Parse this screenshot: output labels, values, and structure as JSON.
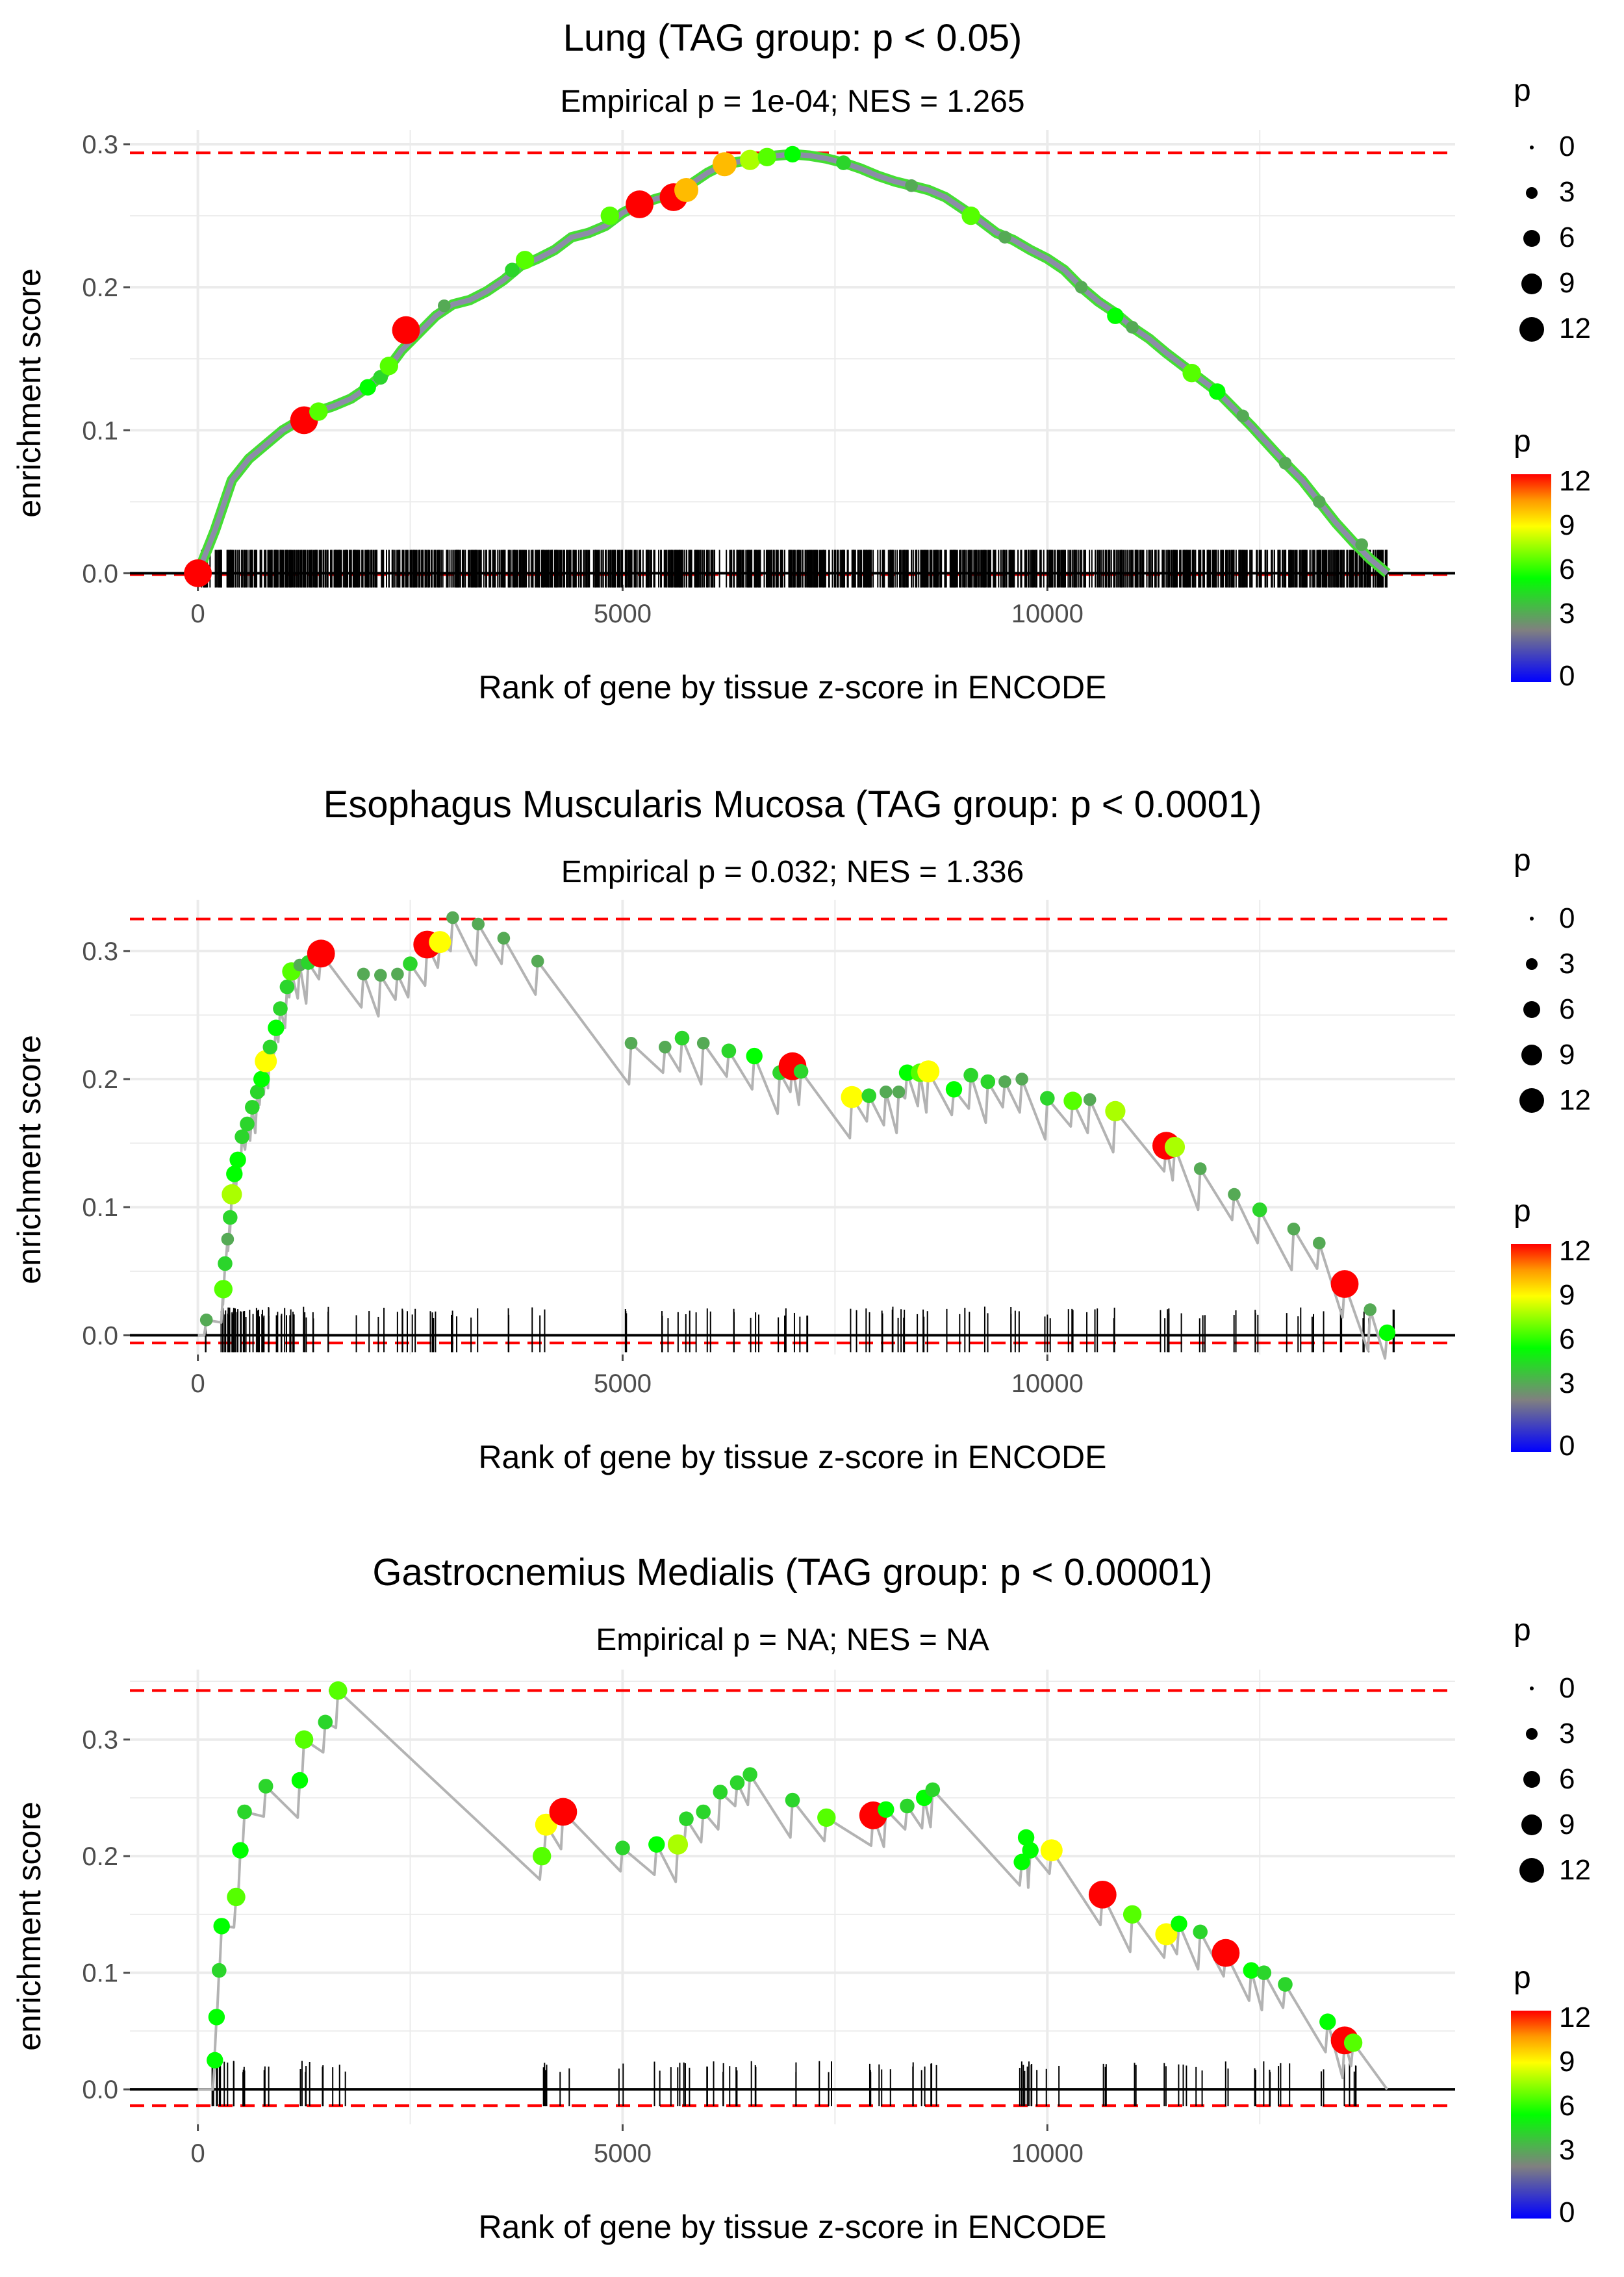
{
  "palette": {
    "grid": "#ebebeb",
    "curve": "#b3b3b3",
    "threshold": "#ff0000",
    "zero_line": "#000000",
    "rug": "#000000",
    "tick_text": "#4d4d4d",
    "text": "#000000",
    "gradient": [
      "#0000ff",
      "#808080",
      "#00ff00",
      "#ffff00",
      "#ff9900",
      "#ff0000"
    ]
  },
  "chart_data": [
    {
      "type": "line",
      "title": "Lung (TAG group: p < 0.05)",
      "subtitle": "Empirical p = 1e-04; NES = 1.265",
      "xlabel": "Rank of gene by tissue z-score in ENCODE",
      "ylabel": "enrichment score",
      "xlim": [
        -800,
        14800
      ],
      "ylim": [
        -0.008,
        0.31
      ],
      "x_ticks": [
        0,
        5000,
        10000
      ],
      "x_tick_labels": [
        "0",
        "5000",
        "10000"
      ],
      "y_ticks": [
        0,
        0.1,
        0.2,
        0.3
      ],
      "y_tick_labels": [
        "0.0",
        "0.1",
        "0.2",
        "0.3"
      ],
      "dense": true,
      "threshold_max": 0.294,
      "threshold_min": -0.001,
      "max_rank": 14000,
      "curve": [
        [
          0,
          0
        ],
        [
          200,
          0.03
        ],
        [
          400,
          0.065
        ],
        [
          600,
          0.08
        ],
        [
          800,
          0.09
        ],
        [
          1000,
          0.1
        ],
        [
          1200,
          0.107
        ],
        [
          1400,
          0.113
        ],
        [
          1600,
          0.117
        ],
        [
          1800,
          0.122
        ],
        [
          2000,
          0.13
        ],
        [
          2200,
          0.14
        ],
        [
          2400,
          0.156
        ],
        [
          2600,
          0.168
        ],
        [
          2800,
          0.18
        ],
        [
          3000,
          0.188
        ],
        [
          3200,
          0.191
        ],
        [
          3400,
          0.197
        ],
        [
          3600,
          0.205
        ],
        [
          3800,
          0.215
        ],
        [
          4000,
          0.22
        ],
        [
          4200,
          0.226
        ],
        [
          4400,
          0.235
        ],
        [
          4600,
          0.238
        ],
        [
          4800,
          0.243
        ],
        [
          5000,
          0.252
        ],
        [
          5200,
          0.258
        ],
        [
          5400,
          0.262
        ],
        [
          5600,
          0.265
        ],
        [
          5800,
          0.272
        ],
        [
          6000,
          0.28
        ],
        [
          6200,
          0.286
        ],
        [
          6400,
          0.288
        ],
        [
          6600,
          0.29
        ],
        [
          6800,
          0.292
        ],
        [
          7000,
          0.293
        ],
        [
          7200,
          0.292
        ],
        [
          7400,
          0.29
        ],
        [
          7600,
          0.287
        ],
        [
          7800,
          0.283
        ],
        [
          8000,
          0.278
        ],
        [
          8200,
          0.274
        ],
        [
          8400,
          0.271
        ],
        [
          8600,
          0.268
        ],
        [
          8800,
          0.263
        ],
        [
          9000,
          0.255
        ],
        [
          9200,
          0.247
        ],
        [
          9400,
          0.238
        ],
        [
          9600,
          0.233
        ],
        [
          9800,
          0.226
        ],
        [
          10000,
          0.22
        ],
        [
          10200,
          0.212
        ],
        [
          10400,
          0.2
        ],
        [
          10600,
          0.19
        ],
        [
          10800,
          0.182
        ],
        [
          11000,
          0.172
        ],
        [
          11200,
          0.164
        ],
        [
          11400,
          0.154
        ],
        [
          11600,
          0.145
        ],
        [
          11800,
          0.136
        ],
        [
          12000,
          0.127
        ],
        [
          12200,
          0.115
        ],
        [
          12400,
          0.103
        ],
        [
          12600,
          0.09
        ],
        [
          12800,
          0.077
        ],
        [
          13000,
          0.065
        ],
        [
          13200,
          0.05
        ],
        [
          13400,
          0.035
        ],
        [
          13600,
          0.022
        ],
        [
          13800,
          0.01
        ],
        [
          14000,
          0.0
        ]
      ],
      "points": [
        [
          0,
          0,
          12
        ],
        [
          1250,
          0.107,
          12
        ],
        [
          1420,
          0.113,
          7
        ],
        [
          2000,
          0.13,
          6
        ],
        [
          2150,
          0.137,
          5
        ],
        [
          2250,
          0.145,
          7
        ],
        [
          2450,
          0.17,
          12
        ],
        [
          2900,
          0.187,
          4
        ],
        [
          3700,
          0.212,
          5
        ],
        [
          3850,
          0.219,
          7
        ],
        [
          4850,
          0.25,
          7
        ],
        [
          5200,
          0.258,
          12
        ],
        [
          5600,
          0.263,
          12
        ],
        [
          5750,
          0.268,
          10
        ],
        [
          6200,
          0.286,
          10
        ],
        [
          6500,
          0.289,
          8
        ],
        [
          6700,
          0.291,
          7
        ],
        [
          7000,
          0.293,
          6
        ],
        [
          7600,
          0.287,
          5
        ],
        [
          8400,
          0.271,
          4
        ],
        [
          9100,
          0.25,
          7
        ],
        [
          9500,
          0.235,
          4
        ],
        [
          10400,
          0.2,
          4
        ],
        [
          10800,
          0.18,
          6
        ],
        [
          11000,
          0.172,
          4
        ],
        [
          11700,
          0.14,
          7
        ],
        [
          12000,
          0.127,
          6
        ],
        [
          12300,
          0.11,
          4
        ],
        [
          12800,
          0.077,
          4
        ],
        [
          13200,
          0.05,
          4
        ],
        [
          13700,
          0.02,
          4
        ]
      ],
      "rug_count": 1400
    },
    {
      "type": "line",
      "title": "Esophagus Muscularis Mucosa (TAG group: p < 0.0001)",
      "subtitle": "Empirical p = 0.032; NES = 1.336",
      "xlabel": "Rank of gene by tissue z-score in ENCODE",
      "ylabel": "enrichment score",
      "xlim": [
        -800,
        14800
      ],
      "ylim": [
        -0.015,
        0.34
      ],
      "x_ticks": [
        0,
        5000,
        10000
      ],
      "x_tick_labels": [
        "0",
        "5000",
        "10000"
      ],
      "y_ticks": [
        0,
        0.1,
        0.2,
        0.3
      ],
      "y_tick_labels": [
        "0.0",
        "0.1",
        "0.2",
        "0.3"
      ],
      "dense": false,
      "threshold_max": 0.325,
      "threshold_min": -0.006,
      "max_rank": 14000,
      "points": [
        [
          100,
          0.012,
          4
        ],
        [
          300,
          0.036,
          7
        ],
        [
          320,
          0.056,
          5
        ],
        [
          350,
          0.075,
          4
        ],
        [
          380,
          0.092,
          5
        ],
        [
          400,
          0.11,
          8
        ],
        [
          430,
          0.126,
          6
        ],
        [
          470,
          0.137,
          6
        ],
        [
          520,
          0.155,
          5
        ],
        [
          580,
          0.165,
          5
        ],
        [
          640,
          0.178,
          5
        ],
        [
          700,
          0.19,
          5
        ],
        [
          750,
          0.2,
          6
        ],
        [
          800,
          0.214,
          9
        ],
        [
          850,
          0.225,
          5
        ],
        [
          920,
          0.24,
          6
        ],
        [
          970,
          0.255,
          5
        ],
        [
          1050,
          0.272,
          5
        ],
        [
          1100,
          0.284,
          7
        ],
        [
          1200,
          0.289,
          4
        ],
        [
          1300,
          0.291,
          5
        ],
        [
          1450,
          0.298,
          12
        ],
        [
          1950,
          0.282,
          4
        ],
        [
          2150,
          0.281,
          4
        ],
        [
          2350,
          0.282,
          4
        ],
        [
          2500,
          0.29,
          5
        ],
        [
          2700,
          0.305,
          12
        ],
        [
          2850,
          0.307,
          9
        ],
        [
          3000,
          0.326,
          4
        ],
        [
          3300,
          0.321,
          4
        ],
        [
          3600,
          0.31,
          4
        ],
        [
          4000,
          0.292,
          4
        ],
        [
          5100,
          0.228,
          4
        ],
        [
          5500,
          0.225,
          4
        ],
        [
          5700,
          0.232,
          5
        ],
        [
          5950,
          0.228,
          4
        ],
        [
          6250,
          0.222,
          5
        ],
        [
          6550,
          0.218,
          6
        ],
        [
          6850,
          0.205,
          5
        ],
        [
          7000,
          0.21,
          12
        ],
        [
          7100,
          0.206,
          5
        ],
        [
          7700,
          0.186,
          9
        ],
        [
          7900,
          0.187,
          5
        ],
        [
          8100,
          0.19,
          4
        ],
        [
          8250,
          0.19,
          4
        ],
        [
          8350,
          0.205,
          6
        ],
        [
          8500,
          0.205,
          7
        ],
        [
          8600,
          0.206,
          9
        ],
        [
          8900,
          0.192,
          6
        ],
        [
          9100,
          0.203,
          5
        ],
        [
          9300,
          0.198,
          5
        ],
        [
          9500,
          0.198,
          4
        ],
        [
          9700,
          0.2,
          4
        ],
        [
          10000,
          0.185,
          5
        ],
        [
          10300,
          0.183,
          7
        ],
        [
          10500,
          0.184,
          4
        ],
        [
          10800,
          0.175,
          8
        ],
        [
          11400,
          0.148,
          12
        ],
        [
          11500,
          0.147,
          8
        ],
        [
          11800,
          0.13,
          4
        ],
        [
          12200,
          0.11,
          4
        ],
        [
          12500,
          0.098,
          5
        ],
        [
          12900,
          0.083,
          4
        ],
        [
          13200,
          0.072,
          4
        ],
        [
          13500,
          0.04,
          12
        ],
        [
          13800,
          0.02,
          4
        ],
        [
          14000,
          0.002,
          6
        ]
      ],
      "rug_count": 160
    },
    {
      "type": "line",
      "title": "Gastrocnemius Medialis (TAG group: p < 0.00001)",
      "subtitle": "Empirical p = NA; NES = NA",
      "xlabel": "Rank of gene by tissue z-score in ENCODE",
      "ylabel": "enrichment score",
      "xlim": [
        -800,
        14800
      ],
      "ylim": [
        -0.03,
        0.36
      ],
      "x_ticks": [
        0,
        5000,
        10000
      ],
      "x_tick_labels": [
        "0",
        "5000",
        "10000"
      ],
      "y_ticks": [
        0,
        0.1,
        0.2,
        0.3
      ],
      "y_tick_labels": [
        "0.0",
        "0.1",
        "0.2",
        "0.3"
      ],
      "dense": false,
      "threshold_max": 0.342,
      "threshold_min": -0.014,
      "max_rank": 14000,
      "points": [
        [
          200,
          0.025,
          6
        ],
        [
          220,
          0.062,
          6
        ],
        [
          250,
          0.102,
          5
        ],
        [
          280,
          0.14,
          6
        ],
        [
          450,
          0.165,
          7
        ],
        [
          500,
          0.205,
          6
        ],
        [
          550,
          0.238,
          5
        ],
        [
          800,
          0.26,
          5
        ],
        [
          1200,
          0.265,
          6
        ],
        [
          1250,
          0.3,
          7
        ],
        [
          1500,
          0.315,
          5
        ],
        [
          1650,
          0.342,
          7
        ],
        [
          4050,
          0.2,
          7
        ],
        [
          4100,
          0.227,
          9
        ],
        [
          4300,
          0.238,
          12
        ],
        [
          5000,
          0.207,
          5
        ],
        [
          5400,
          0.21,
          6
        ],
        [
          5650,
          0.21,
          8
        ],
        [
          5750,
          0.232,
          5
        ],
        [
          5950,
          0.238,
          5
        ],
        [
          6150,
          0.255,
          5
        ],
        [
          6350,
          0.263,
          5
        ],
        [
          6500,
          0.27,
          5
        ],
        [
          7000,
          0.248,
          5
        ],
        [
          7400,
          0.233,
          7
        ],
        [
          7950,
          0.235,
          12
        ],
        [
          8100,
          0.24,
          6
        ],
        [
          8350,
          0.243,
          5
        ],
        [
          8550,
          0.25,
          6
        ],
        [
          8650,
          0.257,
          5
        ],
        [
          9700,
          0.195,
          6
        ],
        [
          9750,
          0.216,
          6
        ],
        [
          9800,
          0.205,
          6
        ],
        [
          10050,
          0.205,
          9
        ],
        [
          10650,
          0.167,
          12
        ],
        [
          11000,
          0.15,
          7
        ],
        [
          11400,
          0.133,
          9
        ],
        [
          11550,
          0.142,
          6
        ],
        [
          11800,
          0.135,
          5
        ],
        [
          12100,
          0.117,
          12
        ],
        [
          12400,
          0.102,
          6
        ],
        [
          12550,
          0.1,
          5
        ],
        [
          12800,
          0.09,
          5
        ],
        [
          13300,
          0.058,
          6
        ],
        [
          13500,
          0.042,
          12
        ],
        [
          13600,
          0.04,
          7
        ]
      ],
      "rug_count": 120
    }
  ],
  "legends": [
    {
      "size_title": "p",
      "size_labels": [
        "0",
        "3",
        "6",
        "9",
        "12"
      ],
      "color_title": "p",
      "color_labels": [
        "12",
        "9",
        "6",
        "3",
        "0"
      ]
    },
    {
      "size_title": "p",
      "size_labels": [
        "0",
        "3",
        "6",
        "9",
        "12"
      ],
      "color_title": "p",
      "color_labels": [
        "12",
        "9",
        "6",
        "3",
        "0"
      ]
    },
    {
      "size_title": "p",
      "size_labels": [
        "0",
        "3",
        "6",
        "9",
        "12"
      ],
      "color_title": "p",
      "color_labels": [
        "12",
        "9",
        "6",
        "3",
        "0"
      ]
    }
  ]
}
